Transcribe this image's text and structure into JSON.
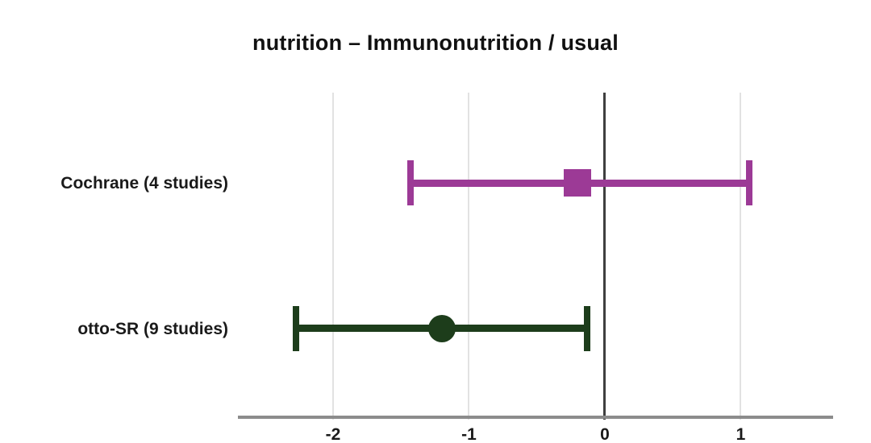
{
  "chart_data": {
    "type": "scatter",
    "subtype": "forest-plot-errorbar",
    "title": "nutrition – Immunonutrition / usual",
    "xlabel": "",
    "ylabel": "",
    "xlim": [
      -2.7,
      1.68
    ],
    "xticks": [
      -2,
      -1,
      0,
      1
    ],
    "xtick_labels": [
      "-2",
      "-1",
      "0",
      "1"
    ],
    "gridlines_x": [
      -2,
      -1,
      1
    ],
    "zero_reference_x": 0,
    "grid": "vertical-gridlines-on",
    "legend_position": "none",
    "rows": [
      {
        "label": "Cochrane (4 studies)",
        "center": -0.2,
        "ci_low": -1.43,
        "ci_high": 1.06,
        "marker": "square",
        "color": "#9c3a96",
        "row_fraction": 0.278
      },
      {
        "label": "otto-SR (9 studies)",
        "center": -1.2,
        "ci_low": -2.27,
        "ci_high": -0.13,
        "marker": "circle",
        "color": "#1d3d1b",
        "row_fraction": 0.727
      }
    ],
    "colors": {
      "gridline": "#e2e2e2",
      "zero_line": "#3f3f3f",
      "axis_line": "#8c8c8c",
      "text": "#1a1a1a",
      "background": "#ffffff"
    }
  }
}
